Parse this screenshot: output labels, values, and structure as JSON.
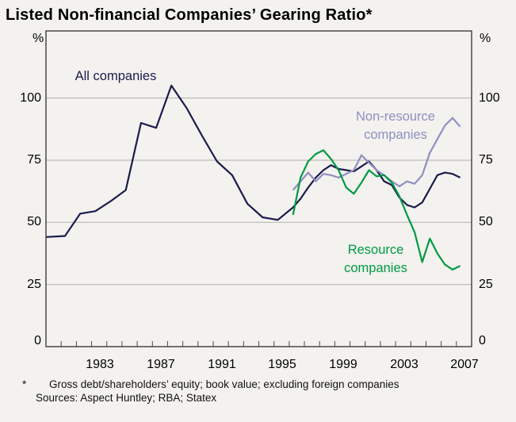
{
  "title": "Listed Non-financial Companies’ Gearing Ratio*",
  "footnote": {
    "marker": "*",
    "text": "Gross debt/shareholders’ equity; book value; excluding foreign companies",
    "sources": "Sources: Aspect Huntley; RBA; Statex"
  },
  "axes": {
    "unit_left": "%",
    "unit_right": "%"
  },
  "chart_data": {
    "type": "line",
    "title": "Listed Non-financial Companies’ Gearing Ratio*",
    "ylabel": "%",
    "xlabel": "",
    "xlim": [
      1980,
      2008
    ],
    "ylim": [
      0,
      127
    ],
    "y_ticks": [
      0,
      25,
      50,
      75,
      100
    ],
    "gridline_values": [
      25,
      50,
      75,
      100
    ],
    "x_minor_tick_years": [
      1981,
      1982,
      1983,
      1984,
      1985,
      1986,
      1987,
      1988,
      1989,
      1990,
      1991,
      1992,
      1993,
      1994,
      1995,
      1996,
      1997,
      1998,
      1999,
      2000,
      2001,
      2002,
      2003,
      2004,
      2005,
      2006,
      2007
    ],
    "x_tick_labels": [
      1983,
      1987,
      1991,
      1995,
      1999,
      2003,
      2007
    ],
    "grid": true,
    "legend_position": "inline-annotations",
    "series": [
      {
        "name": "All companies",
        "color": "#1b1b4e",
        "label_lines": [
          "All companies"
        ],
        "points": [
          [
            1980,
            44
          ],
          [
            1981.5,
            44.5
          ],
          [
            1982.5,
            53.5
          ],
          [
            1983.5,
            54.5
          ],
          [
            1984.5,
            58.5
          ],
          [
            1985.5,
            63
          ],
          [
            1986.5,
            90
          ],
          [
            1987.5,
            88
          ],
          [
            1988.5,
            105
          ],
          [
            1989.5,
            96
          ],
          [
            1990.5,
            85
          ],
          [
            1991.5,
            74.5
          ],
          [
            1992.5,
            69
          ],
          [
            1993.5,
            57.5
          ],
          [
            1994.5,
            52
          ],
          [
            1995.5,
            51
          ],
          [
            1996.5,
            56
          ],
          [
            1997,
            59.5
          ],
          [
            1997.5,
            64
          ],
          [
            1998,
            68
          ],
          [
            1998.5,
            71
          ],
          [
            1999,
            73
          ],
          [
            1999.5,
            71.5
          ],
          [
            2000,
            71
          ],
          [
            2000.5,
            70.5
          ],
          [
            2001,
            72.5
          ],
          [
            2001.5,
            74.5
          ],
          [
            2002,
            71
          ],
          [
            2002.5,
            66.5
          ],
          [
            2003,
            65
          ],
          [
            2003.5,
            60
          ],
          [
            2004,
            57
          ],
          [
            2004.5,
            56
          ],
          [
            2005,
            58
          ],
          [
            2005.5,
            63.5
          ],
          [
            2006,
            69
          ],
          [
            2006.5,
            70
          ],
          [
            2007,
            69.5
          ],
          [
            2007.5,
            68
          ]
        ]
      },
      {
        "name": "Non-resource companies",
        "color": "#8f8fc1",
        "label_lines": [
          "Non-resource",
          "companies"
        ],
        "points": [
          [
            1996.5,
            63
          ],
          [
            1997,
            66.5
          ],
          [
            1997.5,
            70
          ],
          [
            1998,
            66.5
          ],
          [
            1998.5,
            69.5
          ],
          [
            1999,
            69
          ],
          [
            1999.5,
            68
          ],
          [
            2000,
            69.5
          ],
          [
            2000.5,
            71
          ],
          [
            2001,
            77
          ],
          [
            2001.5,
            74
          ],
          [
            2002,
            71
          ],
          [
            2002.5,
            69
          ],
          [
            2003,
            66.5
          ],
          [
            2003.5,
            64.5
          ],
          [
            2004,
            66.5
          ],
          [
            2004.5,
            65.5
          ],
          [
            2005,
            69
          ],
          [
            2005.5,
            78
          ],
          [
            2006,
            83.5
          ],
          [
            2006.5,
            89
          ],
          [
            2007,
            92
          ],
          [
            2007.5,
            88.5
          ]
        ]
      },
      {
        "name": "Resource companies",
        "color": "#009a44",
        "label_lines": [
          "Resource",
          "companies"
        ],
        "points": [
          [
            1996.5,
            53
          ],
          [
            1997,
            68
          ],
          [
            1997.5,
            74.5
          ],
          [
            1998,
            77.5
          ],
          [
            1998.5,
            79
          ],
          [
            1999,
            75.5
          ],
          [
            1999.5,
            71
          ],
          [
            2000,
            64
          ],
          [
            2000.5,
            61.5
          ],
          [
            2001,
            66
          ],
          [
            2001.5,
            71
          ],
          [
            2002,
            68.5
          ],
          [
            2002.5,
            69
          ],
          [
            2003,
            66
          ],
          [
            2003.5,
            60.5
          ],
          [
            2004,
            53
          ],
          [
            2004.5,
            46
          ],
          [
            2005,
            34
          ],
          [
            2005.5,
            43.5
          ],
          [
            2006,
            37.5
          ],
          [
            2006.5,
            33
          ],
          [
            2007,
            31
          ],
          [
            2007.5,
            32.5
          ]
        ]
      }
    ]
  }
}
